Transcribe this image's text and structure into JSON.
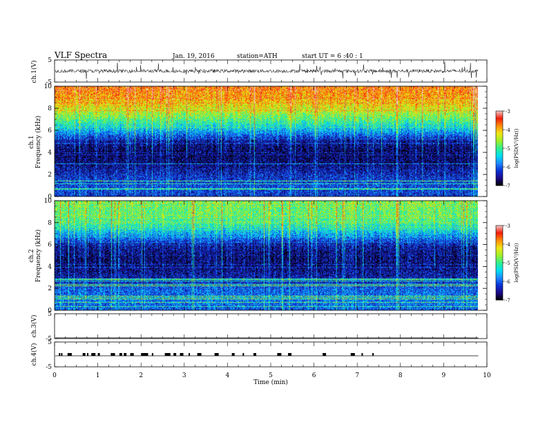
{
  "header": {
    "title": "VLF Spectra",
    "date": "Jan. 19, 2016",
    "station": "station=ATH",
    "start": "start UT =  6 :40 : 1"
  },
  "chart_data": [
    {
      "type": "line",
      "panel": "ch1-waveform",
      "ylabel": "ch.1(V)",
      "ylim": [
        -5,
        5
      ],
      "yticks": [
        "5",
        "-5"
      ],
      "xlim": [
        0,
        10
      ],
      "data_end_x": 9.8,
      "description_level": 0
    },
    {
      "type": "heatmap",
      "panel": "ch1-spectrogram",
      "ylabel_channel": "ch.1",
      "ylabel": "Frequency  (kHz)",
      "ylim": [
        0,
        10
      ],
      "yticks": [
        "10",
        "8",
        "6",
        "4",
        "2",
        "0"
      ],
      "xlim": [
        0,
        10
      ],
      "data_end_x": 9.8,
      "colorbar": {
        "label": "log(PSD(V²/Hz))",
        "range": [
          -7,
          -3
        ],
        "ticks": [
          "-3",
          "-4",
          "-5",
          "-6",
          "-7"
        ]
      },
      "profile_kHz": [
        0,
        1,
        2,
        3,
        4,
        5,
        6,
        7,
        8,
        9,
        10
      ],
      "profile_logpsd": [
        -6.2,
        -6.1,
        -6.3,
        -6.6,
        -6.7,
        -6.5,
        -5.6,
        -4.9,
        -4.3,
        -3.9,
        -3.7
      ]
    },
    {
      "type": "heatmap",
      "panel": "ch2-spectrogram",
      "ylabel_channel": "ch.2",
      "ylabel": "Frequency  (kHz)",
      "ylim": [
        0,
        10
      ],
      "yticks": [
        "10",
        "8",
        "6",
        "4",
        "2",
        "0"
      ],
      "xlim": [
        0,
        10
      ],
      "data_end_x": 9.8,
      "colorbar": {
        "label": "log(PSD(V²/Hz))",
        "range": [
          -7,
          -3
        ],
        "ticks": [
          "-3",
          "-4",
          "-5",
          "-6",
          "-7"
        ]
      },
      "profile_kHz": [
        0,
        1,
        2,
        3,
        4,
        5,
        6,
        7,
        8,
        9,
        10
      ],
      "profile_logpsd": [
        -6.0,
        -5.9,
        -6.0,
        -6.4,
        -6.6,
        -6.6,
        -6.4,
        -5.6,
        -5.0,
        -4.8,
        -4.8
      ]
    },
    {
      "type": "line",
      "panel": "ch3-waveform",
      "ylabel": "ch.3(V)",
      "ylim": [
        -5,
        5
      ],
      "yticks": [
        "5",
        "-5"
      ],
      "xlim": [
        0,
        10
      ],
      "data_end_x": 9.8,
      "level": -5
    },
    {
      "type": "line",
      "panel": "ch4-waveform",
      "ylabel": "ch.4(V)",
      "ylim": [
        -5,
        5
      ],
      "yticks": [
        "5",
        "-5"
      ],
      "xlim": [
        0,
        10
      ],
      "data_end_x": 9.8,
      "level": 0,
      "pulse_times_min": [
        0.1,
        0.15,
        0.3,
        0.35,
        0.65,
        0.75,
        0.85,
        1.0,
        1.3,
        1.35,
        1.5,
        1.6,
        1.75,
        1.8,
        2.0,
        2.05,
        2.1,
        2.25,
        2.55,
        2.6,
        2.75,
        2.9,
        3.1,
        3.3,
        3.7,
        4.1,
        4.35,
        4.6,
        5.15,
        5.4,
        6.2,
        6.85,
        7.1,
        7.35
      ]
    }
  ],
  "xaxis": {
    "label": "Time  (min)",
    "ticks": [
      "0",
      "1",
      "2",
      "3",
      "4",
      "5",
      "6",
      "7",
      "8",
      "9",
      "10"
    ],
    "range": [
      0,
      10
    ]
  },
  "colors": {
    "colormap": [
      "#000000",
      "#1c0a8a",
      "#0a32d6",
      "#1e8cff",
      "#00e1f0",
      "#32f08c",
      "#a0f028",
      "#f0e614",
      "#ff8c0a",
      "#f01e0a",
      "#f0c8c8"
    ]
  }
}
